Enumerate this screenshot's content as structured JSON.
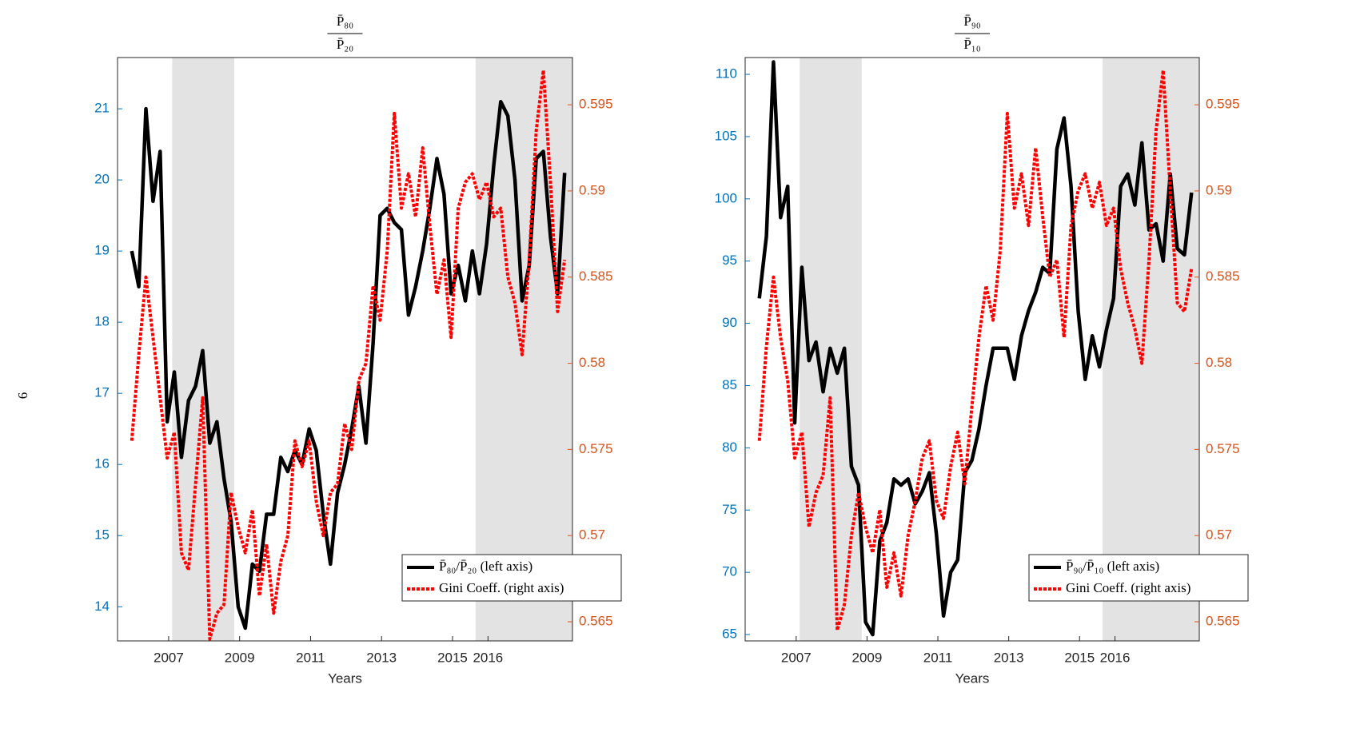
{
  "page_number": "6",
  "chart_data": [
    {
      "type": "line",
      "title": {
        "numerator": "P̄₈₀",
        "denominator": "P̄₂₀"
      },
      "xlabel": "Years",
      "x": [
        2005.96,
        2006.16,
        2006.36,
        2006.56,
        2006.76,
        2006.96,
        2007.16,
        2007.36,
        2007.56,
        2007.76,
        2007.96,
        2008.16,
        2008.36,
        2008.56,
        2008.76,
        2008.96,
        2009.16,
        2009.36,
        2009.56,
        2009.76,
        2009.96,
        2010.16,
        2010.36,
        2010.56,
        2010.76,
        2010.96,
        2011.16,
        2011.36,
        2011.56,
        2011.76,
        2011.96,
        2012.16,
        2012.36,
        2012.56,
        2012.76,
        2012.96,
        2013.16,
        2013.36,
        2013.56,
        2013.76,
        2013.96,
        2014.16,
        2014.36,
        2014.56,
        2014.76,
        2014.96,
        2015.16,
        2015.36,
        2015.56,
        2015.76,
        2015.96,
        2016.16,
        2016.36,
        2016.56,
        2016.76,
        2016.96,
        2017.16,
        2017.36,
        2017.56,
        2017.76,
        2017.96,
        2018.16
      ],
      "series": [
        {
          "name": "P̄₈₀/P̄₂₀ (left axis)",
          "color": "#000000",
          "style": "solid",
          "axis": "y",
          "values": [
            19.0,
            18.5,
            21.0,
            19.7,
            20.4,
            16.6,
            17.3,
            16.1,
            16.9,
            17.1,
            17.6,
            16.3,
            16.6,
            15.8,
            15.2,
            14.0,
            13.7,
            14.6,
            14.5,
            15.3,
            15.3,
            16.1,
            15.9,
            16.2,
            16.0,
            16.5,
            16.2,
            15.3,
            14.6,
            15.6,
            16.0,
            16.5,
            17.1,
            16.3,
            17.7,
            19.5,
            19.6,
            19.4,
            19.3,
            18.1,
            18.5,
            19.0,
            19.6,
            20.3,
            19.8,
            18.4,
            18.8,
            18.3,
            19.0,
            18.4,
            19.1,
            20.2,
            21.1,
            20.9,
            20.0,
            18.3,
            18.8,
            20.3,
            20.4,
            19.2,
            18.4,
            20.1
          ]
        },
        {
          "name": "Gini Coeff. (right axis)",
          "color": "#ff0000",
          "style": "dotted",
          "axis": "y2",
          "values": [
            0.5755,
            0.5805,
            0.585,
            0.5815,
            0.578,
            0.5745,
            0.576,
            0.569,
            0.568,
            0.573,
            0.578,
            0.564,
            0.5655,
            0.566,
            0.5725,
            0.5705,
            0.569,
            0.5715,
            0.5665,
            0.5695,
            0.5655,
            0.5685,
            0.57,
            0.5755,
            0.574,
            0.5755,
            0.572,
            0.57,
            0.5725,
            0.573,
            0.5765,
            0.575,
            0.579,
            0.58,
            0.5845,
            0.5825,
            0.5865,
            0.5945,
            0.589,
            0.591,
            0.5885,
            0.5925,
            0.588,
            0.584,
            0.586,
            0.5815,
            0.589,
            0.5905,
            0.591,
            0.5895,
            0.5905,
            0.5885,
            0.589,
            0.585,
            0.5835,
            0.5805,
            0.586,
            0.5935,
            0.597,
            0.5905,
            0.583,
            0.586
          ]
        }
      ],
      "xlim": [
        2005.56,
        2018.38
      ],
      "xticks": [
        2007,
        2009,
        2011,
        2013,
        2015,
        2016
      ],
      "ylim": [
        13.52,
        21.72
      ],
      "yticks": [
        14,
        15,
        16,
        17,
        18,
        19,
        20,
        21
      ],
      "y2lim": [
        0.56389,
        0.59774
      ],
      "y2ticks": [
        0.565,
        0.57,
        0.575,
        0.58,
        0.585,
        0.59,
        0.595
      ],
      "y_color": "#0072bd",
      "y2_color": "#d95319",
      "shaded_regions": [
        [
          2007.1,
          2008.85
        ],
        [
          2015.65,
          2018.38
        ]
      ],
      "legend": "lower right"
    },
    {
      "type": "line",
      "title": {
        "numerator": "P̄₉₀",
        "denominator": "P̄₁₀"
      },
      "xlabel": "Years",
      "x": [
        2005.96,
        2006.16,
        2006.36,
        2006.56,
        2006.76,
        2006.96,
        2007.16,
        2007.36,
        2007.56,
        2007.76,
        2007.96,
        2008.16,
        2008.36,
        2008.56,
        2008.76,
        2008.96,
        2009.16,
        2009.36,
        2009.56,
        2009.76,
        2009.96,
        2010.16,
        2010.36,
        2010.56,
        2010.76,
        2010.96,
        2011.16,
        2011.36,
        2011.56,
        2011.76,
        2011.96,
        2012.16,
        2012.36,
        2012.56,
        2012.76,
        2012.96,
        2013.16,
        2013.36,
        2013.56,
        2013.76,
        2013.96,
        2014.16,
        2014.36,
        2014.56,
        2014.76,
        2014.96,
        2015.16,
        2015.36,
        2015.56,
        2015.76,
        2015.96,
        2016.16,
        2016.36,
        2016.56,
        2016.76,
        2016.96,
        2017.16,
        2017.36,
        2017.56,
        2017.76,
        2017.96,
        2018.16
      ],
      "series": [
        {
          "name": "P̄₉₀/P̄₁₀ (left axis)",
          "color": "#000000",
          "style": "solid",
          "axis": "y",
          "values": [
            92,
            97,
            111,
            98.5,
            101,
            82,
            94.5,
            87,
            88.5,
            84.5,
            88,
            86,
            88,
            78.5,
            77,
            66,
            65,
            72.5,
            74,
            77.5,
            77,
            77.5,
            75.5,
            76.5,
            78,
            73,
            66.5,
            70,
            71,
            78,
            79,
            81.5,
            85,
            88,
            88,
            88,
            85.5,
            89,
            91,
            92.5,
            94.5,
            94,
            104,
            106.5,
            101,
            91,
            85.5,
            89,
            86.5,
            89.5,
            92,
            101,
            102,
            99.5,
            104.5,
            97.5,
            98,
            95,
            102,
            96,
            95.5,
            100.5
          ]
        },
        {
          "name": "Gini Coeff. (right axis)",
          "color": "#ff0000",
          "style": "dotted",
          "axis": "y2",
          "values": [
            0.5755,
            0.581,
            0.585,
            0.5815,
            0.579,
            0.5745,
            0.576,
            0.5705,
            0.5725,
            0.5735,
            0.578,
            0.5645,
            0.566,
            0.57,
            0.5725,
            0.5705,
            0.569,
            0.5715,
            0.567,
            0.569,
            0.5665,
            0.57,
            0.572,
            0.5745,
            0.5755,
            0.572,
            0.571,
            0.574,
            0.576,
            0.573,
            0.5775,
            0.5815,
            0.5845,
            0.5825,
            0.5865,
            0.5945,
            0.589,
            0.591,
            0.588,
            0.5925,
            0.5885,
            0.585,
            0.586,
            0.5815,
            0.588,
            0.59,
            0.591,
            0.589,
            0.5905,
            0.588,
            0.589,
            0.5855,
            0.5835,
            0.582,
            0.58,
            0.586,
            0.5935,
            0.597,
            0.59,
            0.5835,
            0.583,
            0.5855
          ]
        }
      ],
      "xlim": [
        2005.56,
        2018.38
      ],
      "xticks": [
        2007,
        2009,
        2011,
        2013,
        2015,
        2016
      ],
      "ylim": [
        64.49,
        111.35
      ],
      "yticks": [
        65,
        70,
        75,
        80,
        85,
        90,
        95,
        100,
        105,
        110
      ],
      "y2lim": [
        0.56389,
        0.59774
      ],
      "y2ticks": [
        0.565,
        0.57,
        0.575,
        0.58,
        0.585,
        0.59,
        0.595
      ],
      "y_color": "#0072bd",
      "y2_color": "#d95319",
      "shaded_regions": [
        [
          2007.1,
          2008.85
        ],
        [
          2015.65,
          2018.38
        ]
      ],
      "legend": "lower right"
    }
  ]
}
